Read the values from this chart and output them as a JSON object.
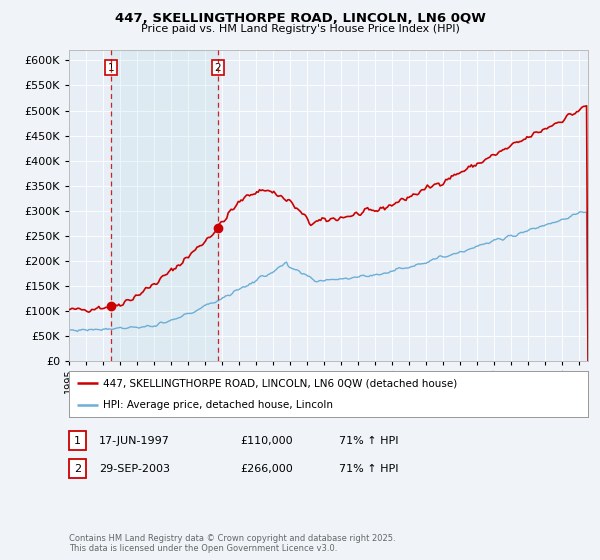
{
  "title": "447, SKELLINGTHORPE ROAD, LINCOLN, LN6 0QW",
  "subtitle": "Price paid vs. HM Land Registry's House Price Index (HPI)",
  "bg_color": "#f0f4f8",
  "plot_bg_color": "#e8eef5",
  "legend_line1": "447, SKELLINGTHORPE ROAD, LINCOLN, LN6 0QW (detached house)",
  "legend_line2": "HPI: Average price, detached house, Lincoln",
  "annotation1_label": "1",
  "annotation1_date": "17-JUN-1997",
  "annotation1_price": "£110,000",
  "annotation1_hpi": "71% ↑ HPI",
  "annotation2_label": "2",
  "annotation2_date": "29-SEP-2003",
  "annotation2_price": "£266,000",
  "annotation2_hpi": "71% ↑ HPI",
  "footer": "Contains HM Land Registry data © Crown copyright and database right 2025.\nThis data is licensed under the Open Government Licence v3.0.",
  "red_color": "#cc0000",
  "blue_color": "#6baed6",
  "ylim": [
    0,
    620000
  ],
  "yticks": [
    0,
    50000,
    100000,
    150000,
    200000,
    250000,
    300000,
    350000,
    400000,
    450000,
    500000,
    550000,
    600000
  ],
  "marker1_x": 1997.46,
  "marker1_y": 110000,
  "marker2_x": 2003.75,
  "marker2_y": 266000,
  "vline1_x": 1997.46,
  "vline2_x": 2003.75,
  "xmin": 1995,
  "xmax": 2025.5
}
